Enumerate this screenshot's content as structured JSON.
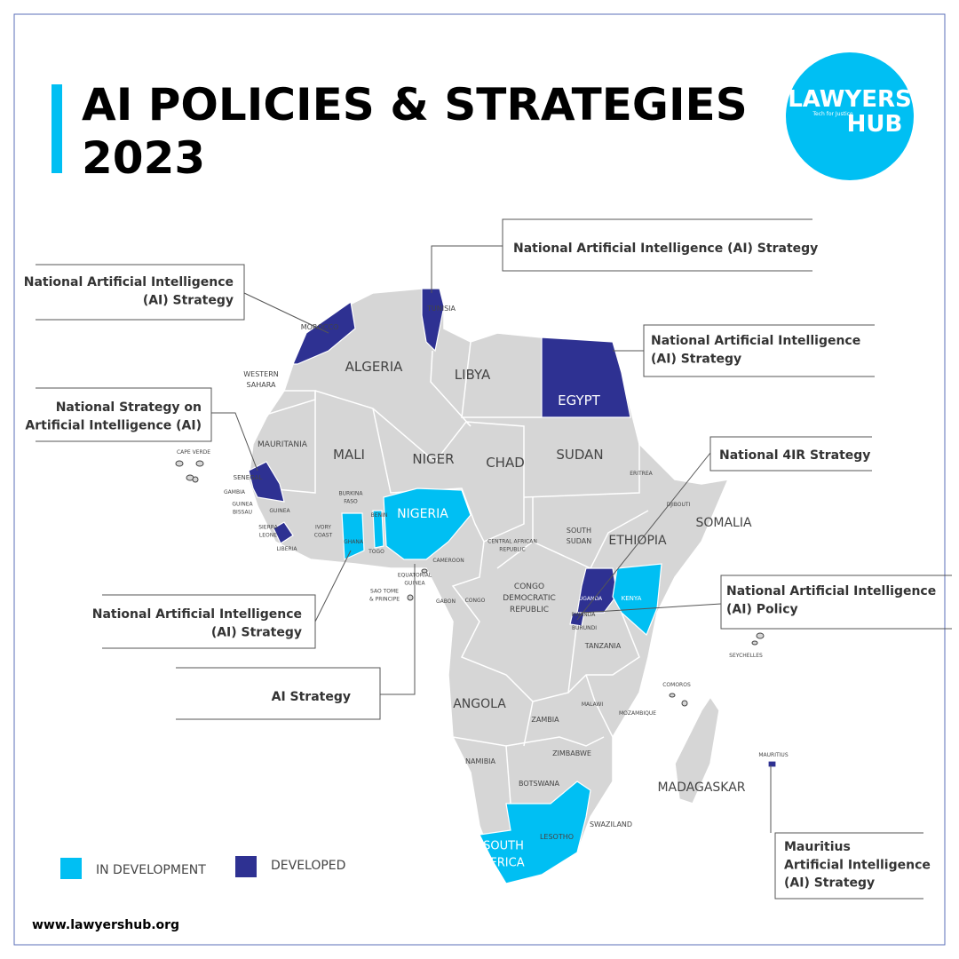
{
  "header": {
    "title_line1": "AI POLICIES & STRATEGIES",
    "title_line2": "2023"
  },
  "logo": {
    "line1": "LAWYERS",
    "line2": "HUB",
    "tagline": "Tech for Justice"
  },
  "callouts": [
    {
      "lines": [
        "National Artificial Intelligence (AI) Strategy"
      ]
    },
    {
      "lines": [
        "National Artificial Intelligence",
        "(AI) Strategy"
      ]
    },
    {
      "lines": [
        "National Artificial Intelligence",
        "(AI) Strategy"
      ]
    },
    {
      "lines": [
        "National Strategy on",
        "Artificial Intelligence (AI)"
      ]
    },
    {
      "lines": [
        "National 4IR Strategy"
      ]
    },
    {
      "lines": [
        "National Artificial Intelligence",
        "(AI) Strategy"
      ]
    },
    {
      "lines": [
        "National Artificial Intelligence",
        "(AI) Policy"
      ]
    },
    {
      "lines": [
        "AI Strategy"
      ]
    },
    {
      "lines": [
        "Mauritius",
        "Artificial Intelligence",
        "(AI) Strategy"
      ]
    }
  ],
  "countries": [
    [
      "MOROCCO"
    ],
    [
      "TUNISIA"
    ],
    [
      "ALGERIA"
    ],
    [
      "LIBYA"
    ],
    [
      "EGYPT"
    ],
    [
      "WESTERN",
      "SAHARA"
    ],
    [
      "MAURITANIA"
    ],
    [
      "MALI"
    ],
    [
      "NIGER"
    ],
    [
      "CHAD"
    ],
    [
      "SUDAN"
    ],
    [
      "SOUTH",
      "SUDAN"
    ],
    [
      "ETHIOPIA"
    ],
    [
      "ERITREA"
    ],
    [
      "DJIBOUTI"
    ],
    [
      "SOMALIA"
    ],
    [
      "CAPE VERDE"
    ],
    [
      "SENEGAL"
    ],
    [
      "GAMBIA"
    ],
    [
      "GUINEA",
      "BISSAU"
    ],
    [
      "GUINEA"
    ],
    [
      "SIERRA",
      "LEONE"
    ],
    [
      "LIBERIA"
    ],
    [
      "IVORY",
      "COAST"
    ],
    [
      "BURKINA",
      "FASO"
    ],
    [
      "GHANA"
    ],
    [
      "TOGO"
    ],
    [
      "BENIN"
    ],
    [
      "NIGERIA"
    ],
    [
      "CAMEROON"
    ],
    [
      "CENTRAL AFRICAN",
      "REPUBLIC"
    ],
    [
      "EQUATORIAL",
      "GUINEA"
    ],
    [
      "SAO TOME",
      "& PRINCIPE"
    ],
    [
      "GABON"
    ],
    [
      "CONGO"
    ],
    [
      "CONGO",
      "DEMOCRATIC",
      "REPUBLIC"
    ],
    [
      "UGANDA"
    ],
    [
      "KENYA"
    ],
    [
      "RWANDA"
    ],
    [
      "BURUNDI"
    ],
    [
      "TANZANIA"
    ],
    [
      "SEYCHELLES"
    ],
    [
      "COMOROS"
    ],
    [
      "ANGOLA"
    ],
    [
      "ZAMBIA"
    ],
    [
      "MALAWI"
    ],
    [
      "MOZAMBIQUE"
    ],
    [
      "NAMIBIA"
    ],
    [
      "ZIMBABWE"
    ],
    [
      "BOTSWANA"
    ],
    [
      "MADAGASKAR"
    ],
    [
      "MAURITIUS"
    ],
    [
      "SWAZILAND"
    ],
    [
      "LESOTHO"
    ],
    [
      "SOUTH",
      "AFRICA"
    ]
  ],
  "legend": [
    {
      "label": "IN DEVELOPMENT",
      "color": "#00bff3"
    },
    {
      "label": "DEVELOPED",
      "color": "#2e3192"
    }
  ],
  "footer": {
    "url": "www.lawyershub.org"
  }
}
